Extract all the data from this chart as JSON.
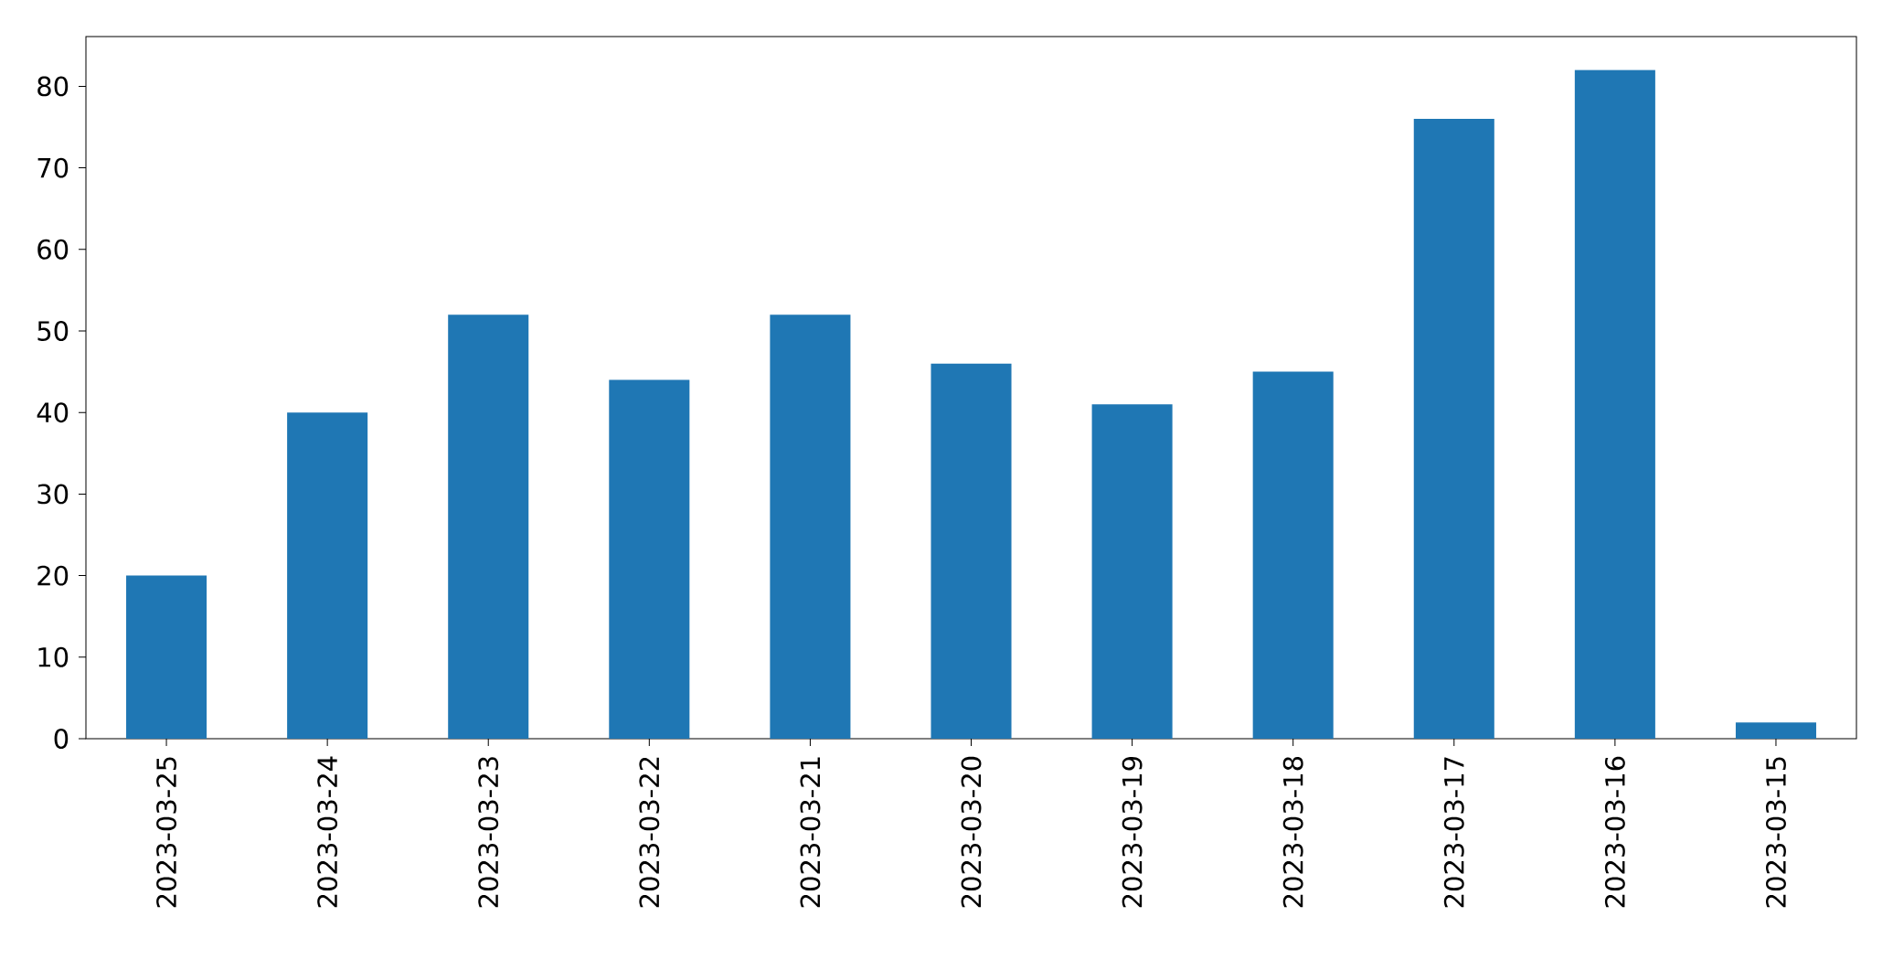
{
  "chart_data": {
    "type": "bar",
    "categories": [
      "2023-03-25",
      "2023-03-24",
      "2023-03-23",
      "2023-03-22",
      "2023-03-21",
      "2023-03-20",
      "2023-03-19",
      "2023-03-18",
      "2023-03-17",
      "2023-03-16",
      "2023-03-15"
    ],
    "values": [
      20,
      40,
      52,
      44,
      52,
      46,
      41,
      45,
      76,
      82,
      2
    ],
    "color": "#1f77b4",
    "ylim": [
      0,
      86.1
    ],
    "yticks": [
      0,
      10,
      20,
      30,
      40,
      50,
      60,
      70,
      80
    ]
  }
}
